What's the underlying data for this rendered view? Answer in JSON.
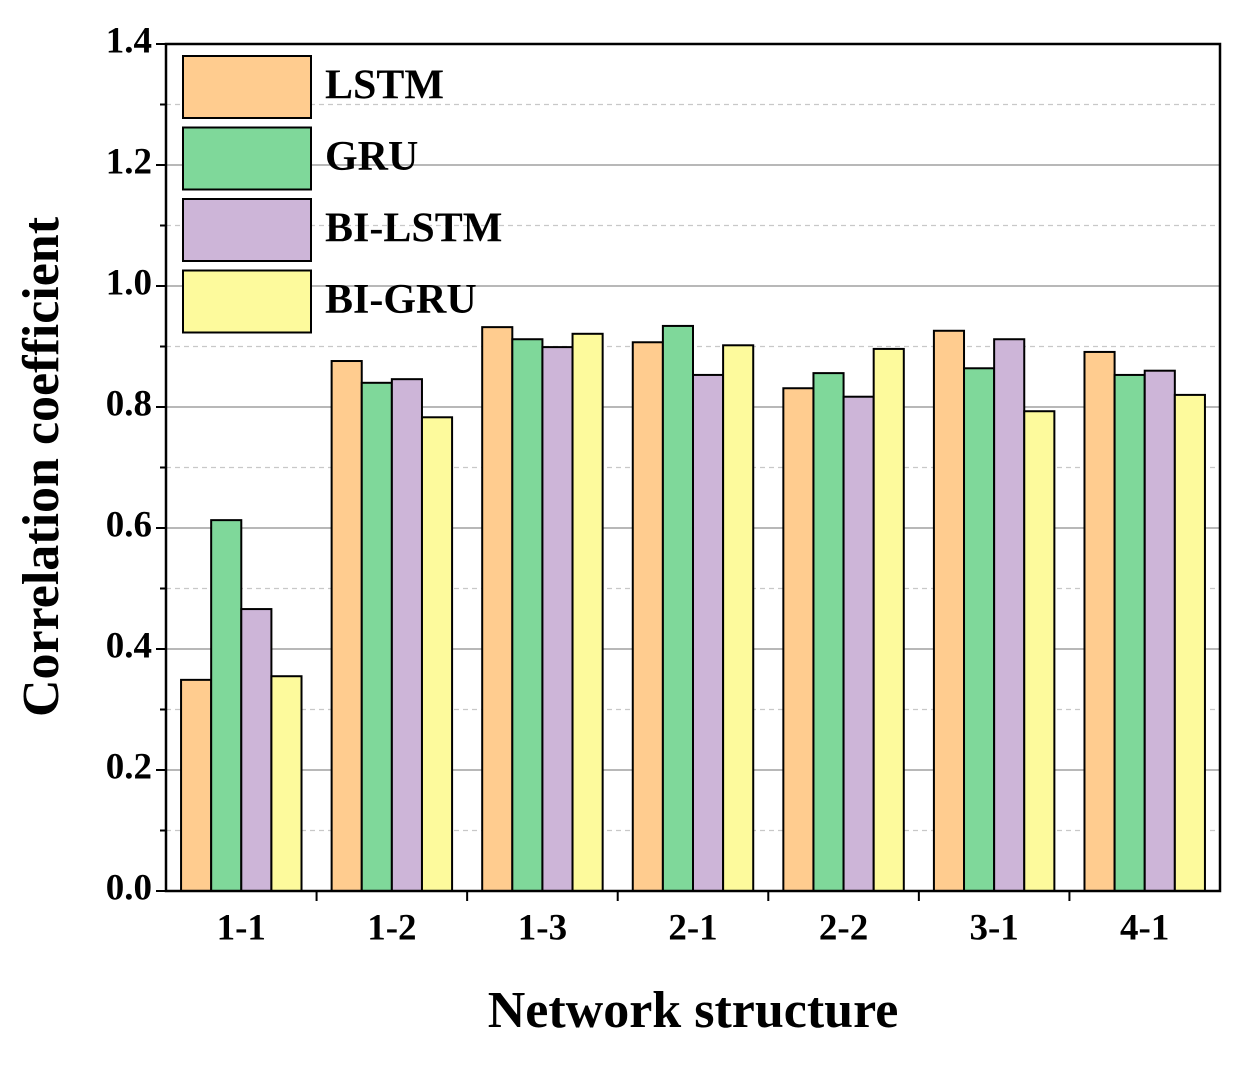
{
  "chart_data": {
    "type": "bar",
    "x_label": "Network structure",
    "y_label": "Correlation coefficient",
    "categories": [
      "1-1",
      "1-2",
      "1-3",
      "2-1",
      "2-2",
      "3-1",
      "4-1"
    ],
    "series": [
      {
        "name": "LSTM",
        "color": "#ffcc8f",
        "values": [
          0.349,
          0.876,
          0.932,
          0.907,
          0.831,
          0.926,
          0.891
        ]
      },
      {
        "name": "GRU",
        "color": "#7fd89a",
        "values": [
          0.613,
          0.84,
          0.912,
          0.934,
          0.856,
          0.864,
          0.853
        ]
      },
      {
        "name": "BI-LSTM",
        "color": "#cdb5d8",
        "values": [
          0.466,
          0.846,
          0.899,
          0.853,
          0.817,
          0.912,
          0.86
        ]
      },
      {
        "name": "BI-GRU",
        "color": "#fdfa9c",
        "values": [
          0.355,
          0.783,
          0.921,
          0.902,
          0.896,
          0.793,
          0.82
        ]
      }
    ],
    "ylim": [
      0,
      1.4
    ],
    "yticks": [
      {
        "value": 0,
        "label": "0.0"
      },
      0.2,
      0.4,
      0.6,
      0.8,
      {
        "value": 1,
        "label": "1.0"
      },
      1.2,
      1.4
    ],
    "grid": true,
    "legend": "upper left"
  }
}
